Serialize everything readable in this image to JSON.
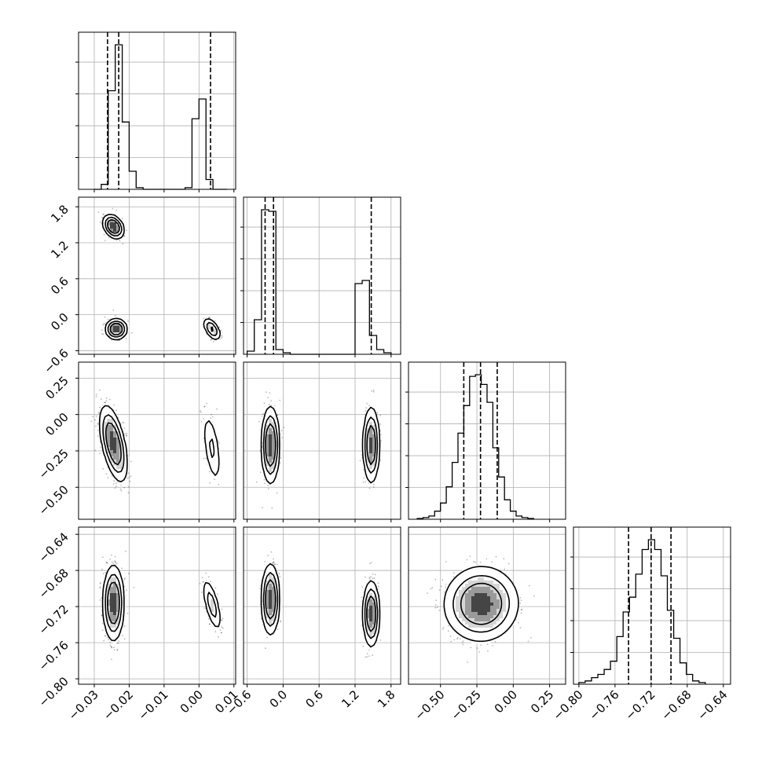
{
  "chart_data": {
    "type": "corner",
    "grid": true,
    "parameters": [
      {
        "range": [
          -0.0345,
          0.0105
        ],
        "ticks": [
          -0.03,
          -0.02,
          -0.01,
          0.0,
          0.01
        ],
        "tick_labels": [
          "−0.03",
          "−0.02",
          "−0.01",
          "0.00",
          "0.01"
        ],
        "quantiles": [
          -0.0262,
          -0.023,
          0.0033
        ],
        "hist_bins": [
          -0.03,
          -0.028,
          -0.026,
          -0.024,
          -0.022,
          -0.02,
          -0.018,
          -0.016,
          -0.014,
          -0.012,
          -0.01,
          -0.008,
          -0.006,
          -0.004,
          -0.002,
          0.0,
          0.002,
          0.004,
          0.006,
          0.008
        ],
        "hist_counts": [
          0,
          0.03,
          0.6,
          0.88,
          0.41,
          0.11,
          0.01,
          0,
          0,
          0,
          0,
          0,
          0,
          0.01,
          0.43,
          0.55,
          0.06,
          0,
          0
        ]
      },
      {
        "range": [
          -0.66,
          1.96
        ],
        "ticks": [
          -0.6,
          0.0,
          0.6,
          1.2,
          1.8
        ],
        "tick_labels": [
          "−0.6",
          "0.0",
          "0.6",
          "1.2",
          "1.8"
        ],
        "quantiles": [
          -0.3,
          -0.16,
          1.47
        ],
        "hist_bins": [
          -0.6,
          -0.48,
          -0.36,
          -0.24,
          -0.12,
          0.0,
          0.12,
          0.24,
          0.36,
          0.48,
          0.6,
          0.72,
          0.84,
          0.96,
          1.08,
          1.2,
          1.32,
          1.44,
          1.56,
          1.68,
          1.8
        ],
        "hist_counts": [
          0.02,
          0.22,
          0.92,
          0.91,
          0.03,
          0.01,
          0,
          0,
          0,
          0,
          0,
          0,
          0,
          0,
          0,
          0.45,
          0.47,
          0.12,
          0.03,
          0.01
        ]
      },
      {
        "range": [
          -0.72,
          0.36
        ],
        "ticks": [
          -0.5,
          -0.25,
          0.0,
          0.25
        ],
        "tick_labels": [
          "−0.50",
          "−0.25",
          "0.00",
          "0.25"
        ],
        "quantiles": [
          -0.34,
          -0.225,
          -0.11
        ],
        "hist_bins": [
          -0.66,
          -0.62,
          -0.58,
          -0.54,
          -0.5,
          -0.46,
          -0.42,
          -0.38,
          -0.34,
          -0.3,
          -0.26,
          -0.22,
          -0.18,
          -0.14,
          -0.1,
          -0.06,
          -0.02,
          0.02,
          0.06,
          0.1,
          0.14
        ],
        "hist_counts": [
          0.005,
          0.01,
          0.02,
          0.05,
          0.1,
          0.2,
          0.35,
          0.53,
          0.7,
          0.88,
          0.89,
          0.83,
          0.72,
          0.44,
          0.26,
          0.12,
          0.05,
          0.02,
          0.01,
          0.005
        ]
      },
      {
        "range": [
          -0.806,
          -0.632
        ],
        "ticks": [
          -0.8,
          -0.76,
          -0.72,
          -0.68,
          -0.64
        ],
        "tick_labels": [
          "−0.80",
          "−0.76",
          "−0.72",
          "−0.68",
          "−0.64"
        ],
        "quantiles": [
          -0.745,
          -0.72,
          -0.698
        ],
        "hist_bins": [
          -0.8,
          -0.793,
          -0.786,
          -0.779,
          -0.772,
          -0.765,
          -0.758,
          -0.751,
          -0.744,
          -0.737,
          -0.73,
          -0.723,
          -0.716,
          -0.709,
          -0.702,
          -0.695,
          -0.688,
          -0.681,
          -0.674,
          -0.667,
          -0.66
        ],
        "hist_counts": [
          0.01,
          0.02,
          0.04,
          0.06,
          0.09,
          0.14,
          0.29,
          0.44,
          0.53,
          0.67,
          0.82,
          0.88,
          0.82,
          0.66,
          0.45,
          0.28,
          0.13,
          0.06,
          0.02,
          0.01
        ]
      }
    ],
    "density": [
      {
        "x": 0,
        "y": 1,
        "blobs": [
          {
            "cx": -0.0245,
            "cy": 1.47,
            "sx": 0.00115,
            "sy": 0.095,
            "rot": -34,
            "w": 0.44
          },
          {
            "cx": -0.0237,
            "cy": -0.24,
            "sx": 0.00135,
            "sy": 0.075,
            "rot": 0,
            "w": 0.4
          },
          {
            "cx": 0.0037,
            "cy": -0.24,
            "sx": 0.00085,
            "sy": 0.095,
            "rot": -32,
            "w": 0.16
          }
        ]
      },
      {
        "x": 0,
        "y": 2,
        "blobs": [
          {
            "cx": -0.0245,
            "cy": -0.2,
            "sx": 0.0014,
            "sy": 0.115,
            "rot": -12,
            "w": 0.84
          },
          {
            "cx": 0.0037,
            "cy": -0.23,
            "sx": 0.001,
            "sy": 0.115,
            "rot": -8,
            "w": 0.16
          }
        ]
      },
      {
        "x": 1,
        "y": 2,
        "blobs": [
          {
            "cx": -0.21,
            "cy": -0.21,
            "sx": 0.065,
            "sy": 0.115,
            "rot": 0,
            "w": 0.55
          },
          {
            "cx": 1.47,
            "cy": -0.21,
            "sx": 0.06,
            "sy": 0.115,
            "rot": 0,
            "w": 0.45
          }
        ]
      },
      {
        "x": 0,
        "y": 3,
        "blobs": [
          {
            "cx": -0.0245,
            "cy": -0.716,
            "sx": 0.0013,
            "sy": 0.018,
            "rot": 0,
            "w": 0.84
          },
          {
            "cx": 0.0037,
            "cy": -0.718,
            "sx": 0.0009,
            "sy": 0.014,
            "rot": -14,
            "w": 0.16
          }
        ]
      },
      {
        "x": 1,
        "y": 3,
        "blobs": [
          {
            "cx": -0.21,
            "cy": -0.712,
            "sx": 0.065,
            "sy": 0.017,
            "rot": 0,
            "w": 0.55
          },
          {
            "cx": 1.47,
            "cy": -0.728,
            "sx": 0.06,
            "sy": 0.016,
            "rot": 0,
            "w": 0.45
          }
        ]
      },
      {
        "x": 2,
        "y": 3,
        "blobs": [
          {
            "cx": -0.22,
            "cy": -0.717,
            "sx": 0.11,
            "sy": 0.018,
            "rot": 33,
            "w": 1.0
          }
        ]
      }
    ]
  }
}
